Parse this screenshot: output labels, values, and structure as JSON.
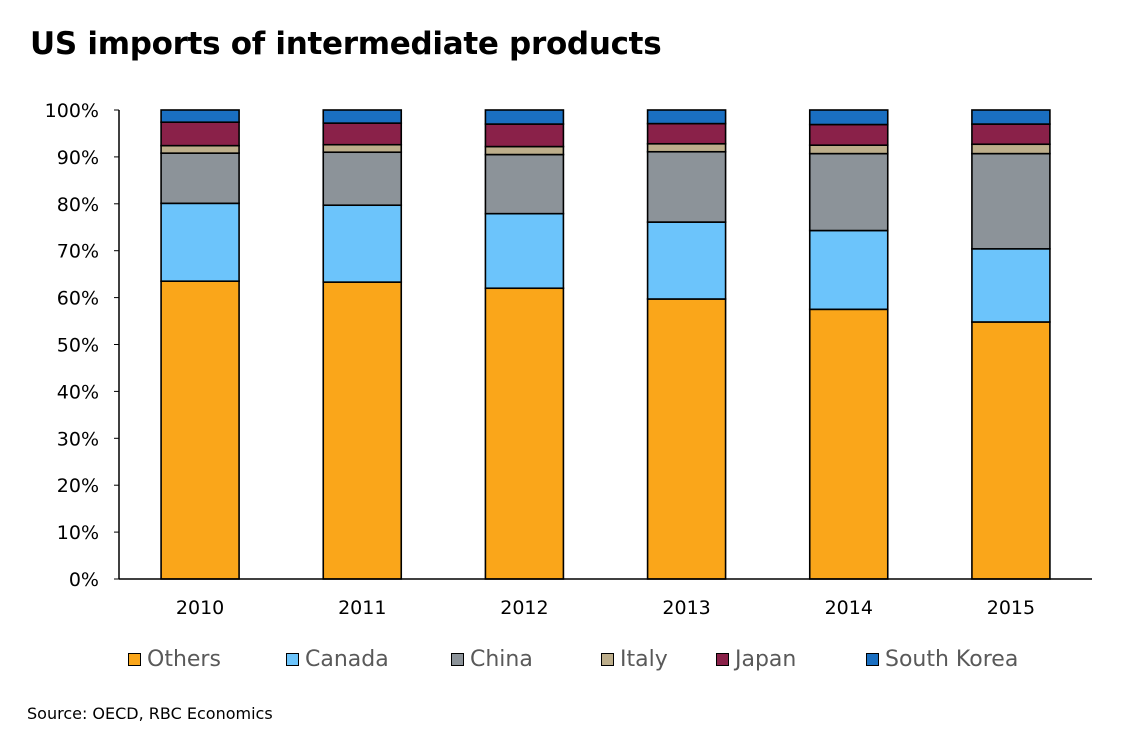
{
  "title": "US imports of intermediate products",
  "source": "Source: OECD, RBC Economics",
  "chart_data": {
    "type": "bar",
    "stacked": true,
    "categories": [
      "2010",
      "2011",
      "2012",
      "2013",
      "2014",
      "2015"
    ],
    "ylim": [
      0,
      100
    ],
    "yticks": [
      "0%",
      "10%",
      "20%",
      "30%",
      "40%",
      "50%",
      "60%",
      "70%",
      "80%",
      "90%",
      "100%"
    ],
    "xlabel": "",
    "ylabel": "",
    "legend_position": "bottom",
    "series": [
      {
        "name": "Others",
        "color": "#FAA61A",
        "values": [
          63.5,
          63.3,
          62.0,
          59.7,
          57.5,
          54.8
        ]
      },
      {
        "name": "Canada",
        "color": "#6CC4FB",
        "values": [
          16.6,
          16.4,
          15.9,
          16.4,
          16.8,
          15.6
        ]
      },
      {
        "name": "China",
        "color": "#8C9399",
        "values": [
          10.7,
          11.3,
          12.6,
          15.0,
          16.4,
          20.3
        ]
      },
      {
        "name": "Italy",
        "color": "#BDAE8B",
        "values": [
          1.6,
          1.6,
          1.7,
          1.7,
          1.8,
          2.0
        ]
      },
      {
        "name": "Japan",
        "color": "#8A2149",
        "values": [
          5.0,
          4.6,
          4.8,
          4.3,
          4.4,
          4.3
        ]
      },
      {
        "name": "South Korea",
        "color": "#1A6FC1",
        "values": [
          2.6,
          2.8,
          3.0,
          2.9,
          3.1,
          3.0
        ]
      }
    ]
  }
}
